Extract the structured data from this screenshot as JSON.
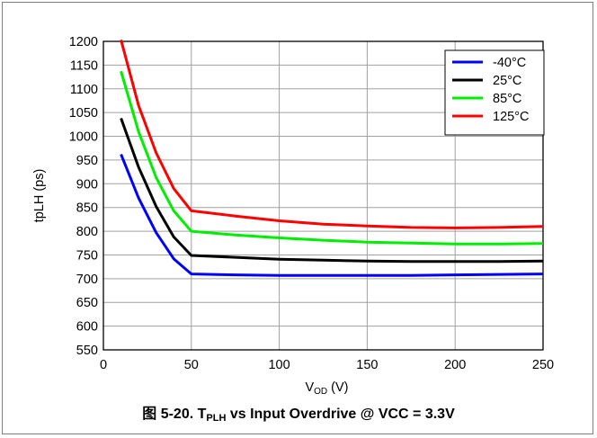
{
  "caption": {
    "prefix": "图 5-20. T",
    "sub": "PLH",
    "suffix": " vs Input Overdrive @ VCC = 3.3V"
  },
  "chart_data": {
    "type": "line",
    "x_min": 0,
    "x_max": 250,
    "x_step": 50,
    "y_min": 550,
    "y_max": 1200,
    "y_step": 50,
    "x_ticks": [
      "0",
      "50",
      "100",
      "150",
      "200",
      "250"
    ],
    "y_ticks": [
      "550",
      "600",
      "650",
      "700",
      "750",
      "800",
      "850",
      "900",
      "950",
      "1000",
      "1050",
      "1100",
      "1150",
      "1200"
    ],
    "xlabel": {
      "main": "V",
      "sub": "OD",
      "unit": " (V)"
    },
    "ylabel": "tpLH (ps)",
    "grid": true,
    "legend_position": "top-right",
    "series": [
      {
        "name": "-40°C",
        "color": "#0000ff",
        "x": [
          10,
          20,
          30,
          40,
          50,
          75,
          100,
          125,
          150,
          175,
          200,
          225,
          250
        ],
        "y": [
          962,
          870,
          797,
          742,
          710,
          708,
          707,
          707,
          707,
          707,
          708,
          709,
          710
        ]
      },
      {
        "name": "25°C",
        "color": "#000000",
        "x": [
          10,
          20,
          30,
          40,
          50,
          75,
          100,
          125,
          150,
          175,
          200,
          225,
          250
        ],
        "y": [
          1038,
          935,
          852,
          788,
          749,
          745,
          741,
          739,
          737,
          736,
          736,
          736,
          737
        ]
      },
      {
        "name": "85°C",
        "color": "#00ee00",
        "x": [
          10,
          20,
          30,
          40,
          50,
          75,
          100,
          125,
          150,
          175,
          200,
          225,
          250
        ],
        "y": [
          1137,
          1010,
          913,
          843,
          800,
          792,
          786,
          781,
          777,
          775,
          773,
          773,
          774
        ]
      },
      {
        "name": "125°C",
        "color": "#ff0000",
        "x": [
          10,
          20,
          30,
          40,
          50,
          75,
          100,
          125,
          150,
          175,
          200,
          225,
          250
        ],
        "y": [
          1203,
          1065,
          965,
          890,
          843,
          832,
          822,
          815,
          811,
          808,
          807,
          808,
          810
        ]
      }
    ]
  }
}
